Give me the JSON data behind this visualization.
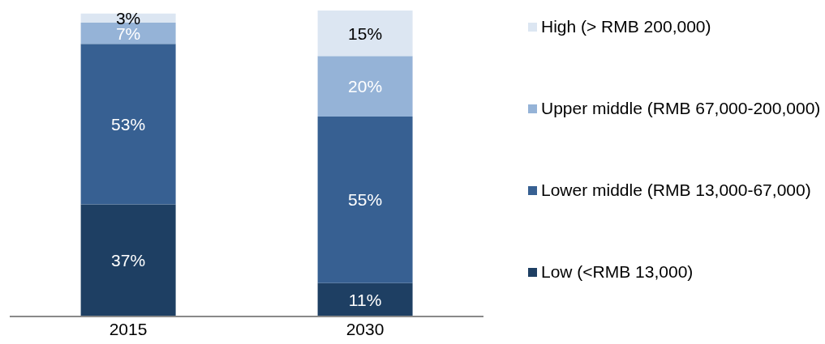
{
  "chart_data": {
    "type": "bar",
    "stacked": true,
    "categories": [
      "2015",
      "2030"
    ],
    "series": [
      {
        "name": "Low (<RMB 13,000)",
        "color": "#1e3f63",
        "values": [
          37,
          11
        ],
        "value_labels": [
          "37%",
          "11%"
        ]
      },
      {
        "name": "Lower middle (RMB 13,000-67,000)",
        "color": "#376092",
        "values": [
          53,
          55
        ],
        "value_labels": [
          "53%",
          "55%"
        ]
      },
      {
        "name": "Upper middle (RMB 67,000-200,000)",
        "color": "#95b3d7",
        "values": [
          7,
          20
        ],
        "value_labels": [
          "7%",
          "20%"
        ]
      },
      {
        "name": "High (> RMB 200,000)",
        "color": "#dce6f2",
        "values": [
          3,
          15
        ],
        "value_labels": [
          "3%",
          "15%"
        ]
      }
    ],
    "legend": "right"
  }
}
